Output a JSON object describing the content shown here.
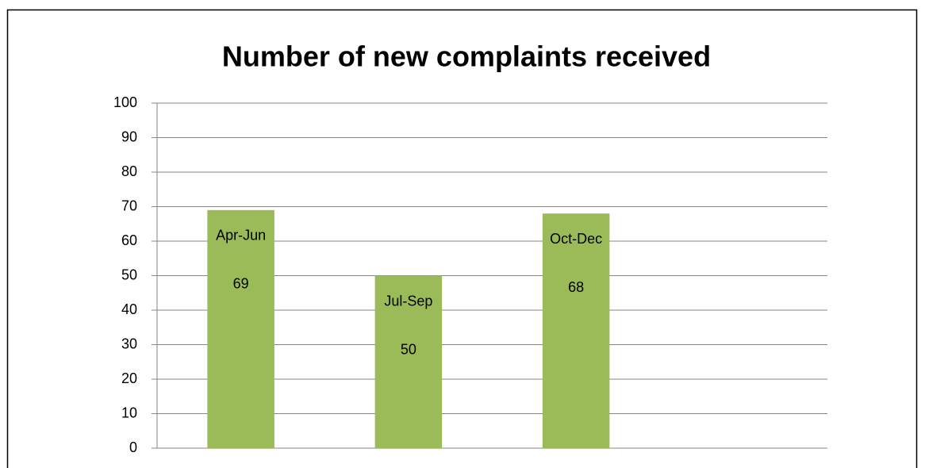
{
  "chart_data": {
    "type": "bar",
    "title": "Number of new complaints received",
    "categories": [
      "Apr-Jun",
      "Jul-Sep",
      "Oct-Dec",
      null
    ],
    "values": [
      69,
      50,
      68,
      null
    ],
    "color": "#9bbb59",
    "ylim": [
      0,
      100
    ],
    "yticks": [
      0,
      10,
      20,
      30,
      40,
      50,
      60,
      70,
      80,
      90,
      100
    ],
    "grid": true
  }
}
